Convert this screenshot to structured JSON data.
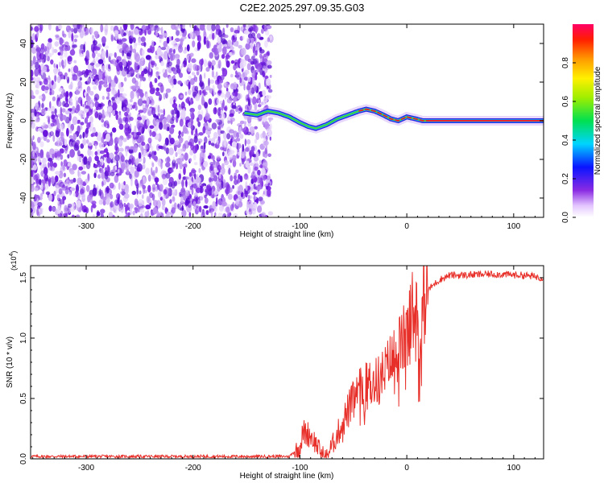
{
  "figure": {
    "title": "C2E2.2025.297.09.35.G03"
  },
  "chart_data": [
    {
      "type": "heatmap",
      "title": "C2E2.2025.297.09.35.G03",
      "xlabel": "Height of straight line (km)",
      "ylabel": "Frequency (Hz)",
      "xlim": [
        -352,
        128
      ],
      "ylim": [
        -50,
        50
      ],
      "xticks": [
        -300,
        -200,
        -100,
        0,
        100
      ],
      "yticks": [
        -40,
        -20,
        0,
        20,
        40
      ],
      "colorbar": {
        "label": "Normalized spectral amplitude",
        "range": [
          0,
          1
        ],
        "ticks": [
          "0.0",
          "0.2",
          "0.4",
          "0.6",
          "0.8"
        ],
        "tick_values": [
          0.0,
          0.2,
          0.4,
          0.6,
          0.8
        ]
      },
      "noise_region_x": [
        -352,
        -127
      ],
      "signal_track": {
        "x": [
          -152,
          -140,
          -130,
          -120,
          -110,
          -100,
          -92,
          -85,
          -75,
          -65,
          -55,
          -45,
          -38,
          -30,
          -22,
          -15,
          -8,
          0,
          8,
          15,
          30,
          60,
          128
        ],
        "freq": [
          4,
          3,
          5,
          4,
          2,
          -1,
          -3,
          -4,
          -2,
          1,
          3,
          5,
          6,
          5,
          3,
          1,
          0,
          2,
          1,
          0,
          0,
          0,
          0
        ]
      }
    },
    {
      "type": "line",
      "xlabel": "Height of straight line (km)",
      "ylabel": "SNR (10 * v/v)",
      "multiplier_label": "(x10",
      "multiplier_exp": "4",
      "xlim": [
        -352,
        128
      ],
      "ylim": [
        0,
        1.6
      ],
      "xticks": [
        -300,
        -200,
        -100,
        0,
        100
      ],
      "yticks": [
        0.0,
        0.5,
        1.0,
        1.5
      ],
      "ytick_labels": [
        "0.0",
        "0.5",
        "1.0",
        "1.5"
      ],
      "series": [
        {
          "name": "SNR",
          "color": "#e8302a",
          "x": [
            -352,
            -300,
            -250,
            -200,
            -150,
            -110,
            -100,
            -97,
            -90,
            -80,
            -75,
            -65,
            -55,
            -45,
            -35,
            -25,
            -15,
            -5,
            2,
            5,
            10,
            12,
            15,
            20,
            30,
            40,
            50,
            80,
            110,
            128
          ],
          "y": [
            0.02,
            0.02,
            0.02,
            0.02,
            0.02,
            0.02,
            0.1,
            0.22,
            0.2,
            0.05,
            0.02,
            0.2,
            0.4,
            0.55,
            0.62,
            0.65,
            0.8,
            0.95,
            1.05,
            1.25,
            1.15,
            0.95,
            1.3,
            1.4,
            1.48,
            1.52,
            1.52,
            1.53,
            1.52,
            1.5
          ]
        }
      ]
    }
  ]
}
